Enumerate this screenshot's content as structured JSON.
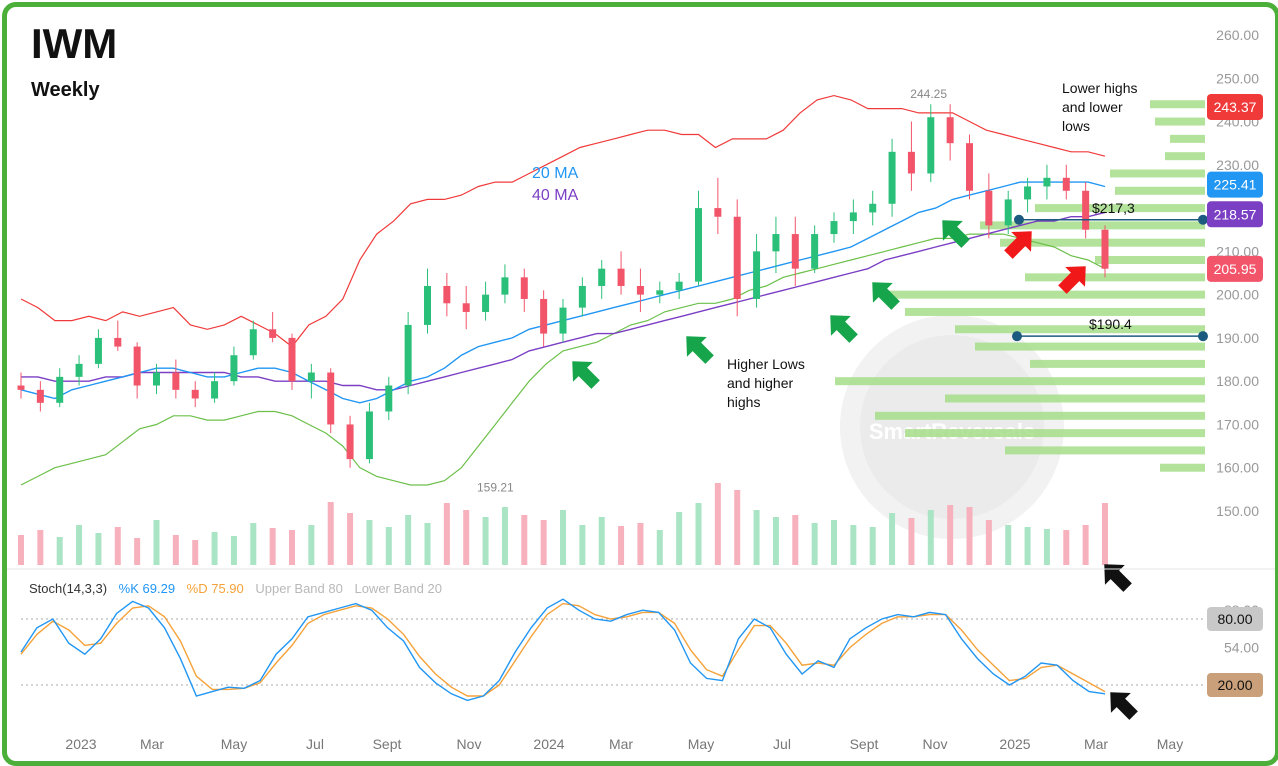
{
  "title": "IWM",
  "subtitle": "Weekly",
  "ma_labels": {
    "ma20": "20 MA",
    "ma40": "40 MA"
  },
  "annotations": {
    "lower_highs": [
      "Lower highs",
      "and lower",
      "lows"
    ],
    "higher_lows": [
      "Higher Lows",
      "and higher",
      "highs"
    ],
    "level_217": "$217,3",
    "level_190": "$190.4",
    "high_label": "244.25",
    "low_label": "159.21"
  },
  "watermark": "SmartReversals",
  "colors": {
    "up": "#2bc07a",
    "down": "#f2556a",
    "bb": "#f03a3a",
    "bb_lower": "#6cc04a",
    "ma20": "#2196f3",
    "ma40": "#7b3fc4",
    "ema": "#f5d03a",
    "sma": "#8a8a8a",
    "volume_profile": "#a6dd8a",
    "stoch_k": "#2196f3",
    "stoch_d": "#f5a23a",
    "frame": "#4caf3a"
  },
  "stoch_legend": {
    "name": "Stoch(14,3,3)",
    "k": "%K 69.29",
    "d": "%D 75.90",
    "upper": "Upper Band 80",
    "lower": "Lower Band 20"
  },
  "chart_data": {
    "type": "line",
    "price_axis": {
      "ticks": [
        "260.00",
        "250.00",
        "240.00",
        "230.00",
        "220.00",
        "210.00",
        "200.00",
        "190.00",
        "180.00",
        "170.00",
        "160.00",
        "150.00"
      ],
      "ylim": [
        140,
        262
      ]
    },
    "price_badges": [
      {
        "value": "243.37",
        "color": "#f03a3a"
      },
      {
        "value": "225.41",
        "color": "#2196f3"
      },
      {
        "value": "218.57",
        "color": "#7b3fc4"
      },
      {
        "value": "205.95",
        "color": "#f2556a"
      }
    ],
    "x_ticks": [
      "2023",
      "Mar",
      "May",
      "Jul",
      "Sept",
      "Nov",
      "2024",
      "Mar",
      "May",
      "Jul",
      "Sept",
      "Nov",
      "2025",
      "Mar",
      "May"
    ],
    "bollinger_upper": [
      199,
      197,
      194,
      194,
      195,
      194,
      196,
      195,
      196,
      197,
      193,
      192,
      193,
      195,
      193,
      191,
      188,
      193,
      195,
      199,
      208,
      214,
      217,
      221,
      222,
      222,
      223,
      225,
      226,
      226,
      228,
      230,
      232,
      234,
      235,
      236,
      237,
      238,
      238,
      237,
      237,
      234,
      236,
      236,
      236,
      238,
      242,
      245,
      246,
      245,
      243,
      243,
      243,
      242,
      242,
      242,
      240,
      238,
      237,
      236,
      235,
      234,
      233,
      233,
      232
    ],
    "bollinger_lower": [
      156,
      158,
      160,
      161,
      162,
      163,
      166,
      169,
      170,
      172,
      172,
      171,
      171,
      172,
      173,
      173,
      172,
      170,
      168,
      165,
      160,
      158,
      157,
      156,
      156,
      157,
      160,
      165,
      170,
      175,
      180,
      184,
      187,
      188,
      189,
      191,
      193,
      194,
      196,
      197,
      198,
      198,
      199,
      201,
      202,
      204,
      205,
      206,
      207,
      208,
      209,
      210,
      211,
      212,
      213,
      213,
      214,
      214,
      214,
      213,
      212,
      211,
      209,
      208,
      206
    ],
    "ma20": [
      178,
      177,
      176,
      178,
      179,
      180,
      181,
      182,
      183,
      183,
      182,
      181,
      181,
      182,
      183,
      183,
      182,
      180,
      178,
      176,
      175,
      176,
      178,
      180,
      181,
      183,
      186,
      188,
      189,
      190,
      192,
      193,
      194,
      195,
      196,
      197,
      198,
      199,
      200,
      201,
      202,
      203,
      204,
      205,
      206,
      207,
      208,
      209,
      210,
      211,
      213,
      215,
      217,
      219,
      220,
      222,
      223,
      224,
      225,
      226,
      226,
      226,
      226,
      226,
      225
    ],
    "ma40": [
      181,
      181,
      180,
      180,
      180,
      181,
      181,
      182,
      182,
      182,
      182,
      182,
      182,
      181,
      181,
      180,
      180,
      180,
      180,
      179,
      179,
      178,
      178,
      179,
      180,
      181,
      182,
      183,
      184,
      185,
      187,
      188,
      189,
      190,
      191,
      191,
      192,
      193,
      194,
      195,
      196,
      197,
      198,
      199,
      200,
      201,
      202,
      203,
      204,
      205,
      206,
      208,
      209,
      210,
      211,
      212,
      213,
      214,
      215,
      216,
      217,
      217,
      218,
      218,
      219
    ],
    "ohlc": [
      [
        179,
        182,
        176,
        178
      ],
      [
        178,
        180,
        173,
        175
      ],
      [
        175,
        183,
        174,
        181
      ],
      [
        181,
        186,
        179,
        184
      ],
      [
        184,
        192,
        183,
        190
      ],
      [
        190,
        194,
        187,
        188
      ],
      [
        188,
        189,
        176,
        179
      ],
      [
        179,
        184,
        177,
        182
      ],
      [
        182,
        185,
        176,
        178
      ],
      [
        178,
        180,
        174,
        176
      ],
      [
        176,
        182,
        175,
        180
      ],
      [
        180,
        188,
        179,
        186
      ],
      [
        186,
        194,
        185,
        192
      ],
      [
        192,
        196,
        189,
        190
      ],
      [
        190,
        191,
        178,
        180
      ],
      [
        180,
        184,
        176,
        182
      ],
      [
        182,
        183,
        168,
        170
      ],
      [
        170,
        172,
        160,
        162
      ],
      [
        162,
        175,
        161,
        173
      ],
      [
        173,
        181,
        171,
        179
      ],
      [
        179,
        196,
        177,
        193
      ],
      [
        193,
        206,
        191,
        202
      ],
      [
        202,
        205,
        195,
        198
      ],
      [
        198,
        202,
        192,
        196
      ],
      [
        196,
        203,
        194,
        200
      ],
      [
        200,
        207,
        198,
        204
      ],
      [
        204,
        206,
        196,
        199
      ],
      [
        199,
        201,
        188,
        191
      ],
      [
        191,
        199,
        189,
        197
      ],
      [
        197,
        204,
        195,
        202
      ],
      [
        202,
        208,
        199,
        206
      ],
      [
        206,
        210,
        200,
        202
      ],
      [
        202,
        206,
        196,
        200
      ],
      [
        200,
        203,
        198,
        201
      ],
      [
        201,
        205,
        199,
        203
      ],
      [
        203,
        224,
        202,
        220
      ],
      [
        220,
        227,
        214,
        218
      ],
      [
        218,
        222,
        195,
        199
      ],
      [
        199,
        214,
        197,
        210
      ],
      [
        210,
        218,
        205,
        214
      ],
      [
        214,
        218,
        202,
        206
      ],
      [
        206,
        216,
        205,
        214
      ],
      [
        214,
        219,
        212,
        217
      ],
      [
        217,
        222,
        214,
        219
      ],
      [
        219,
        224,
        216,
        221
      ],
      [
        221,
        236,
        218,
        233
      ],
      [
        233,
        240,
        224,
        228
      ],
      [
        228,
        244,
        226,
        241
      ],
      [
        241,
        244,
        231,
        235
      ],
      [
        235,
        237,
        222,
        224
      ],
      [
        224,
        228,
        213,
        216
      ],
      [
        216,
        224,
        214,
        222
      ],
      [
        222,
        227,
        219,
        225
      ],
      [
        225,
        230,
        222,
        227
      ],
      [
        227,
        230,
        222,
        224
      ],
      [
        224,
        226,
        213,
        215
      ],
      [
        215,
        216,
        204,
        206
      ]
    ],
    "volume_profile_bars": [
      {
        "price": 244,
        "len": 55
      },
      {
        "price": 240,
        "len": 50
      },
      {
        "price": 236,
        "len": 35
      },
      {
        "price": 232,
        "len": 40
      },
      {
        "price": 228,
        "len": 95
      },
      {
        "price": 224,
        "len": 90
      },
      {
        "price": 220,
        "len": 170
      },
      {
        "price": 216,
        "len": 225
      },
      {
        "price": 212,
        "len": 205
      },
      {
        "price": 208,
        "len": 110
      },
      {
        "price": 204,
        "len": 180
      },
      {
        "price": 200,
        "len": 320
      },
      {
        "price": 196,
        "len": 300
      },
      {
        "price": 192,
        "len": 250
      },
      {
        "price": 188,
        "len": 230
      },
      {
        "price": 184,
        "len": 175
      },
      {
        "price": 180,
        "len": 370
      },
      {
        "price": 176,
        "len": 260
      },
      {
        "price": 172,
        "len": 330
      },
      {
        "price": 168,
        "len": 300
      },
      {
        "price": 164,
        "len": 200
      },
      {
        "price": 160,
        "len": 45
      }
    ],
    "volume": [
      30,
      35,
      28,
      40,
      32,
      38,
      27,
      45,
      30,
      25,
      33,
      29,
      42,
      37,
      35,
      40,
      63,
      52,
      45,
      38,
      50,
      42,
      62,
      55,
      48,
      58,
      50,
      45,
      55,
      40,
      48,
      39,
      42,
      35,
      53,
      62,
      82,
      75,
      55,
      48,
      50,
      42,
      45,
      40,
      38,
      52,
      47,
      55,
      60,
      58,
      45,
      40,
      38,
      36,
      35,
      40,
      62
    ],
    "stoch_axis": {
      "ticks": [
        "88.00",
        "80.00",
        "54.00",
        "20.00"
      ],
      "ylim": [
        0,
        100
      ]
    },
    "stoch_k": [
      50,
      72,
      80,
      58,
      48,
      62,
      85,
      96,
      90,
      72,
      44,
      10,
      14,
      18,
      17,
      24,
      48,
      62,
      82,
      86,
      90,
      94,
      88,
      72,
      60,
      36,
      22,
      12,
      6,
      10,
      24,
      50,
      72,
      90,
      98,
      88,
      80,
      78,
      84,
      88,
      86,
      70,
      40,
      26,
      24,
      62,
      80,
      72,
      48,
      30,
      42,
      36,
      62,
      72,
      80,
      84,
      82,
      86,
      84,
      62,
      44,
      30,
      20,
      28,
      40,
      38,
      24,
      14,
      12
    ],
    "stoch_d": [
      48,
      66,
      78,
      70,
      56,
      58,
      76,
      90,
      92,
      82,
      60,
      28,
      16,
      16,
      17,
      22,
      40,
      56,
      76,
      84,
      88,
      92,
      90,
      80,
      66,
      46,
      30,
      18,
      10,
      10,
      20,
      42,
      64,
      84,
      94,
      92,
      84,
      80,
      82,
      86,
      86,
      76,
      52,
      34,
      28,
      52,
      74,
      74,
      58,
      38,
      40,
      38,
      54,
      66,
      76,
      82,
      82,
      84,
      84,
      70,
      52,
      38,
      24,
      26,
      36,
      38,
      30,
      22,
      14
    ]
  }
}
